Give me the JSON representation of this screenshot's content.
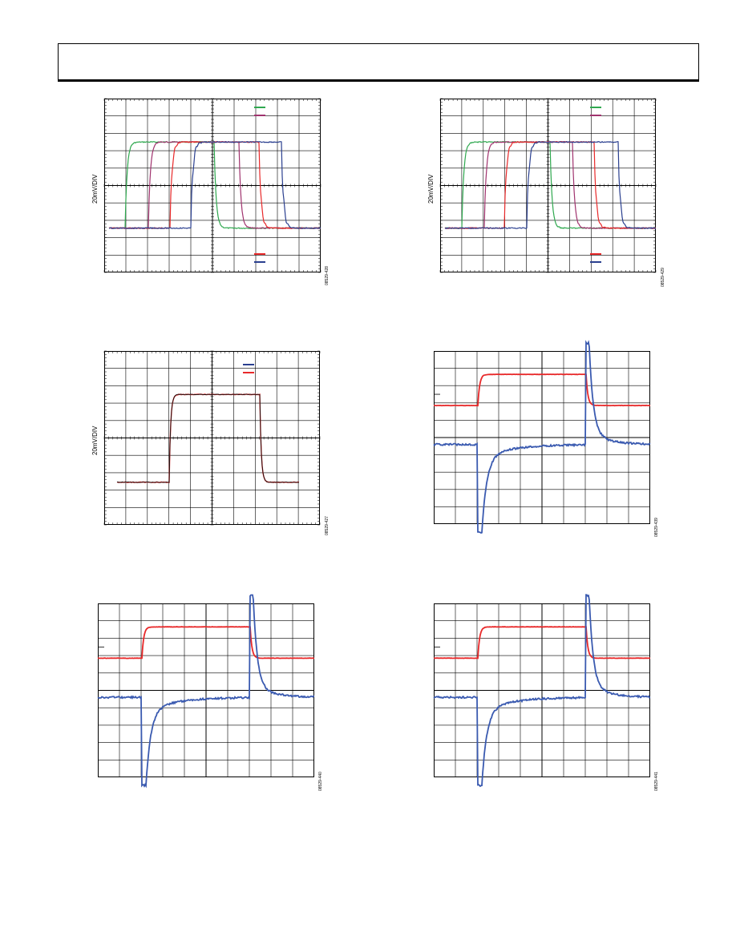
{
  "page": {
    "header_text": ""
  },
  "colors": {
    "green": "#2fa84f",
    "red": "#e8292a",
    "purple": "#a0336e",
    "blue": "#2a3f8f",
    "blue_light": "#3a5ab0",
    "black": "#111111",
    "grid": "#000000"
  },
  "figures": [
    {
      "id": "08529-428",
      "ylabel": "20mV/DIV",
      "kind": "multi_edges",
      "legend_top": [
        "green",
        "purple"
      ],
      "legend_bottom": [
        "red",
        "blue"
      ]
    },
    {
      "id": "08529-429",
      "ylabel": "20mV/DIV",
      "kind": "multi_edges",
      "legend_top": [
        "green",
        "purple"
      ],
      "legend_bottom": [
        "red",
        "blue"
      ]
    },
    {
      "id": "08529-427",
      "ylabel": "20mV/DIV",
      "kind": "single_pulse",
      "legend_top": [
        "blue",
        "red"
      ]
    },
    {
      "id": "08529-439",
      "ylabel": "",
      "kind": "overload"
    },
    {
      "id": "08529-440",
      "ylabel": "",
      "kind": "overload"
    },
    {
      "id": "08529-441",
      "ylabel": "",
      "kind": "overload"
    }
  ]
}
